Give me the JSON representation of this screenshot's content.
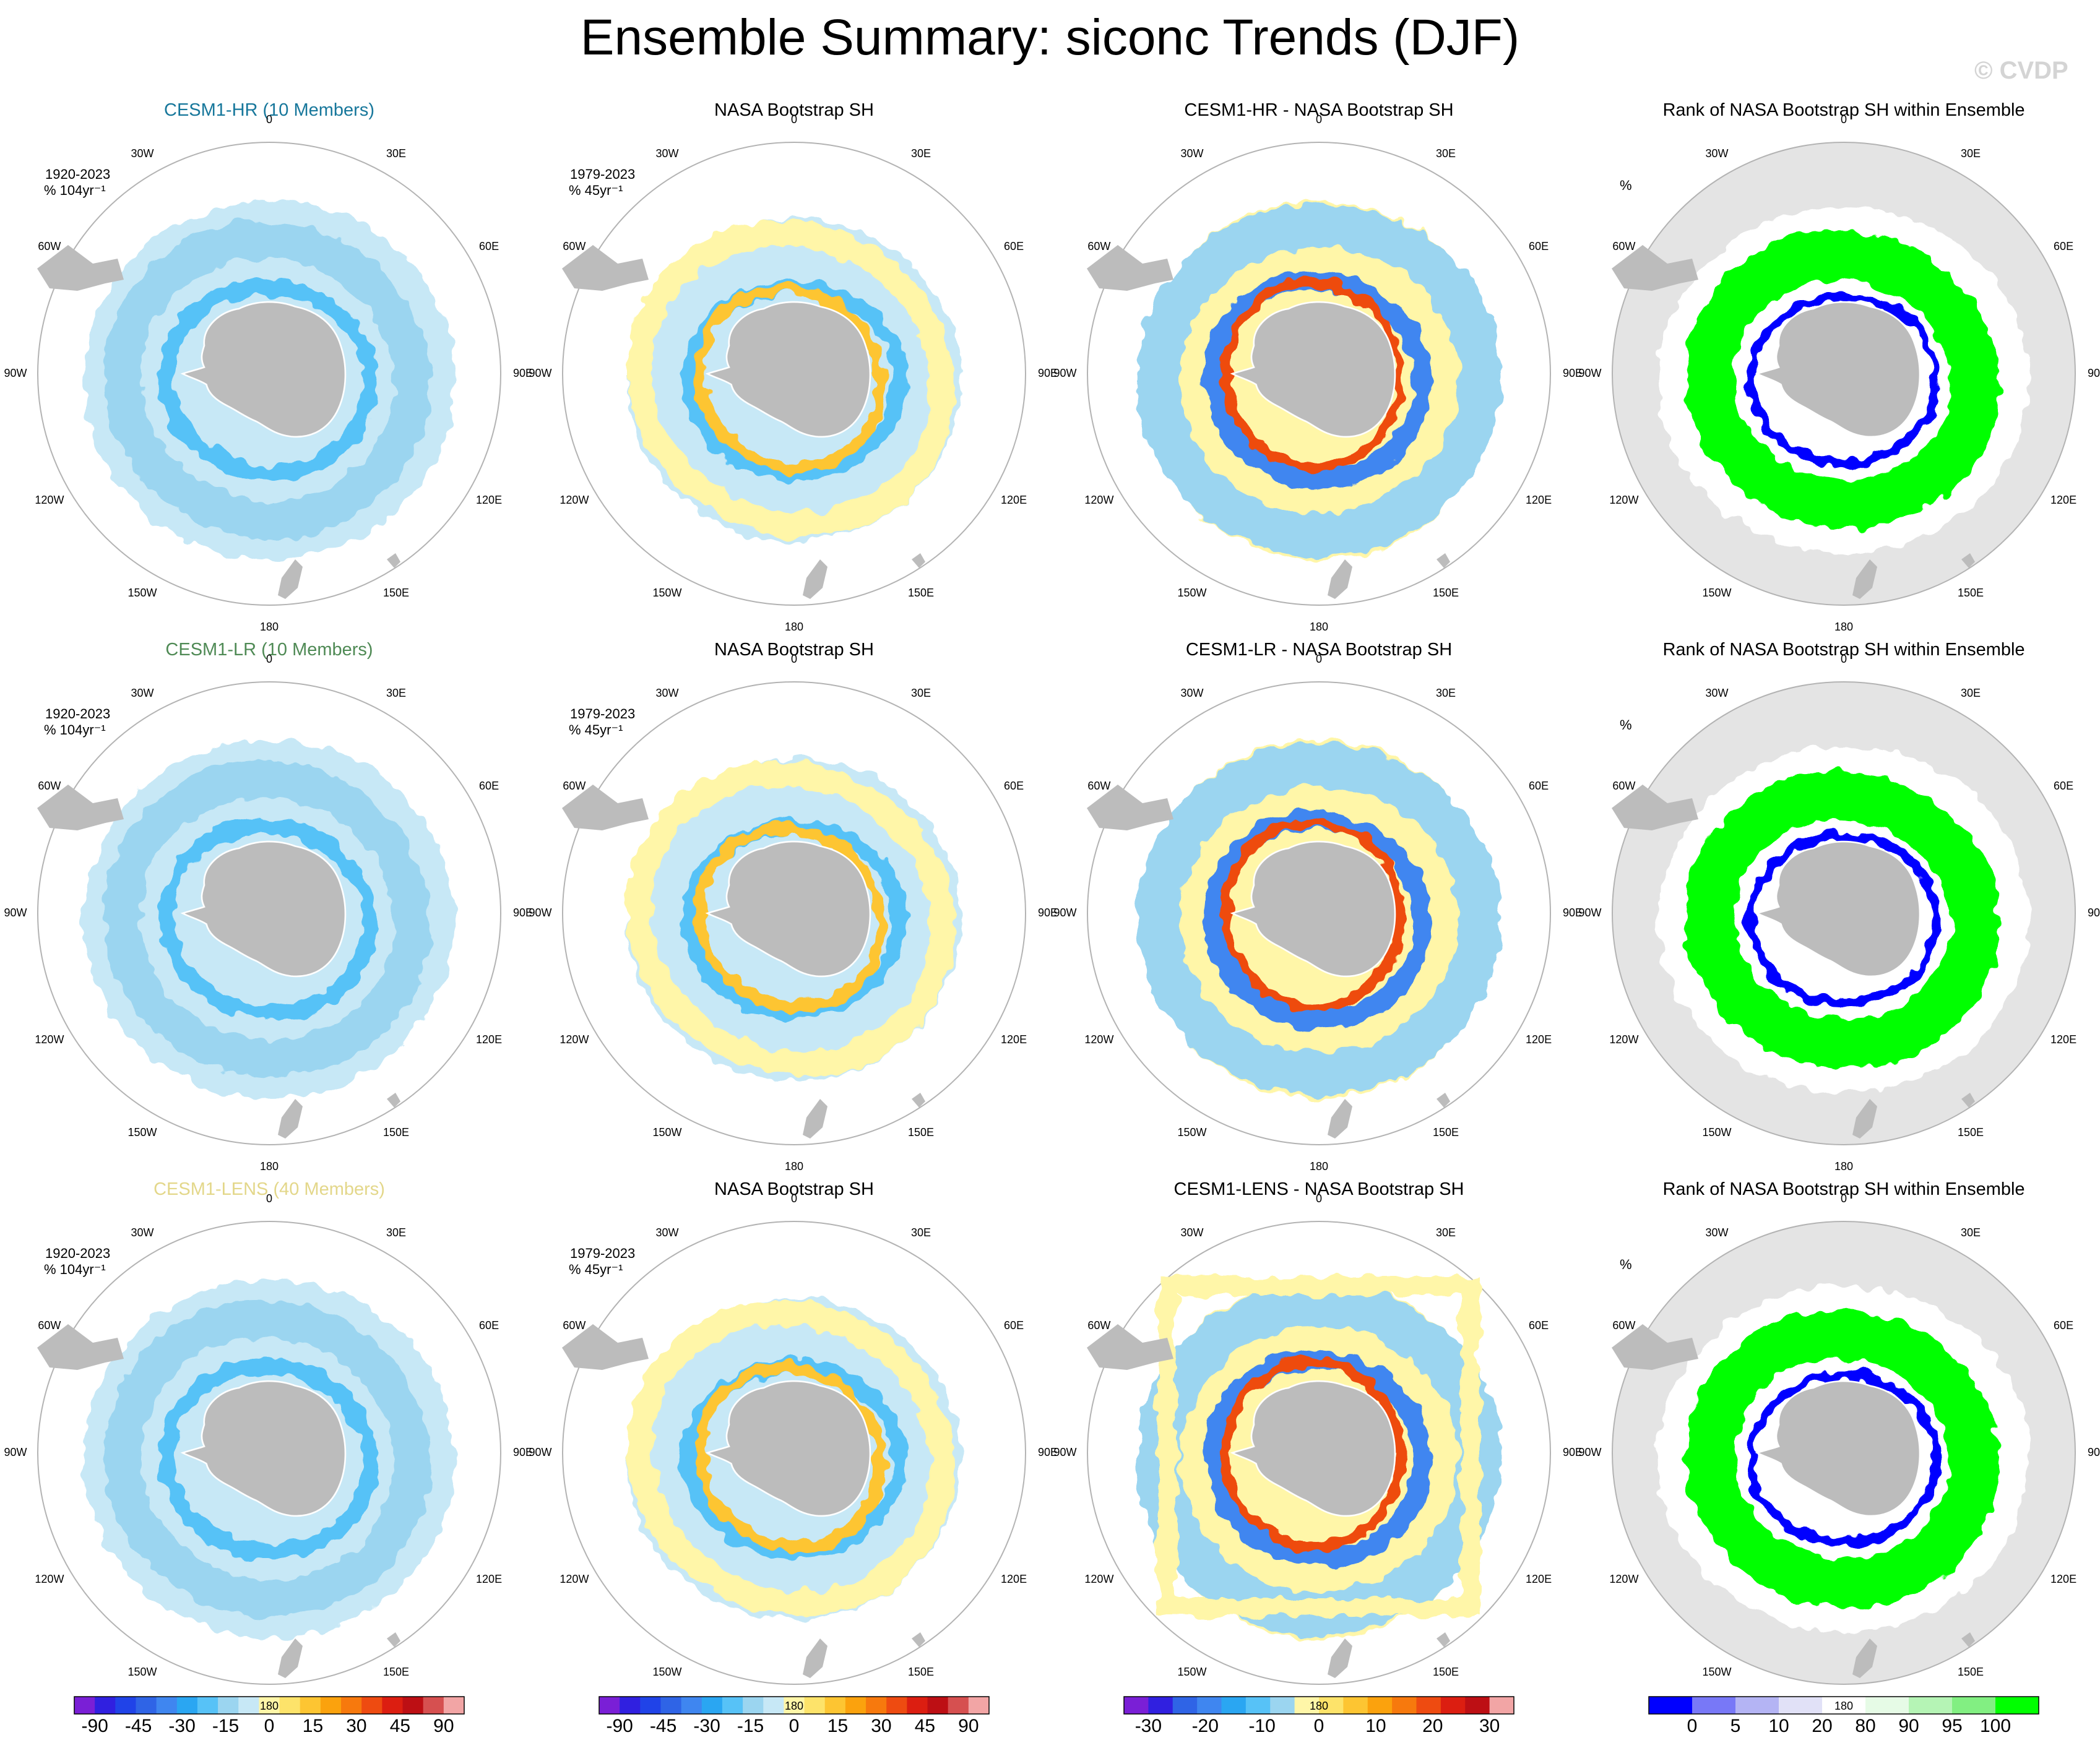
{
  "title": "Ensemble Summary: siconc Trends (DJF)",
  "watermark": "© CVDP",
  "colors": {
    "hr_title": "#17779b",
    "lr_title": "#4f8a55",
    "lens_title": "#e3d78a",
    "land": "#bcbcbc",
    "rank_bg": "#e4e4e4",
    "ring": "#b3b3b3"
  },
  "lon_labels": [
    "0",
    "30E",
    "60E",
    "90E",
    "120E",
    "150E",
    "180",
    "150W",
    "120W",
    "90W",
    "60W",
    "30W"
  ],
  "rows": [
    {
      "model": "CESM1-HR (10 Members)",
      "model_name": "CESM1-HR",
      "title_color": "#17779b",
      "panels": [
        {
          "type": "model",
          "title": "CESM1-HR (10 Members)",
          "period": "1920-2023",
          "units": "% 104yr⁻¹"
        },
        {
          "type": "obs",
          "title": "NASA Bootstrap SH",
          "period": "1979-2023",
          "units": "% 45yr⁻¹"
        },
        {
          "type": "diff",
          "title": "CESM1-HR - NASA Bootstrap SH"
        },
        {
          "type": "rank",
          "title": "Rank of NASA Bootstrap SH within Ensemble",
          "units": "%"
        }
      ]
    },
    {
      "model": "CESM1-LR (10 Members)",
      "model_name": "CESM1-LR",
      "title_color": "#4f8a55",
      "panels": [
        {
          "type": "model",
          "title": "CESM1-LR (10 Members)",
          "period": "1920-2023",
          "units": "% 104yr⁻¹"
        },
        {
          "type": "obs",
          "title": "NASA Bootstrap SH",
          "period": "1979-2023",
          "units": "% 45yr⁻¹"
        },
        {
          "type": "diff",
          "title": "CESM1-LR - NASA Bootstrap SH"
        },
        {
          "type": "rank",
          "title": "Rank of NASA Bootstrap SH within Ensemble",
          "units": "%"
        }
      ]
    },
    {
      "model": "CESM1-LENS (40 Members)",
      "model_name": "CESM1-LENS",
      "title_color": "#e3d78a",
      "panels": [
        {
          "type": "model",
          "title": "CESM1-LENS (40 Members)",
          "period": "1920-2023",
          "units": "% 104yr⁻¹"
        },
        {
          "type": "obs",
          "title": "NASA Bootstrap SH",
          "period": "1979-2023",
          "units": "% 45yr⁻¹"
        },
        {
          "type": "diff",
          "title": "CESM1-LENS - NASA Bootstrap SH"
        },
        {
          "type": "rank",
          "title": "Rank of NASA Bootstrap SH within Ensemble",
          "units": "%"
        }
      ]
    }
  ],
  "colorbars": [
    {
      "name": "trend",
      "colors": [
        "#7a1fd6",
        "#3020e0",
        "#2043e8",
        "#2f64e6",
        "#3f86f0",
        "#2aa6f2",
        "#57c2f7",
        "#9bd5f0",
        "#c7e8f6",
        "#fff6a8",
        "#fde36a",
        "#fdc532",
        "#fba20d",
        "#f7790d",
        "#ee4b11",
        "#dc1e11",
        "#bd0f14",
        "#d65050",
        "#f2a5a5"
      ],
      "labels": [
        "-90",
        "-45",
        "-30",
        "-15",
        "0",
        "15",
        "30",
        "45",
        "90"
      ]
    },
    {
      "name": "trend",
      "colors": [
        "#7a1fd6",
        "#3020e0",
        "#2043e8",
        "#2f64e6",
        "#3f86f0",
        "#2aa6f2",
        "#57c2f7",
        "#9bd5f0",
        "#c7e8f6",
        "#fff6a8",
        "#fde36a",
        "#fdc532",
        "#fba20d",
        "#f7790d",
        "#ee4b11",
        "#dc1e11",
        "#bd0f14",
        "#d65050",
        "#f2a5a5"
      ],
      "labels": [
        "-90",
        "-45",
        "-30",
        "-15",
        "0",
        "15",
        "30",
        "45",
        "90"
      ]
    },
    {
      "name": "diff",
      "colors": [
        "#7a1fd6",
        "#3020e0",
        "#2f64e6",
        "#3f86f0",
        "#2aa6f2",
        "#57c2f7",
        "#9bd5f0",
        "#fff6a8",
        "#fde36a",
        "#fdc532",
        "#fba20d",
        "#f7790d",
        "#ee4b11",
        "#dc1e11",
        "#bd0f14",
        "#f2a5a5"
      ],
      "labels": [
        "-30",
        "-20",
        "-10",
        "0",
        "10",
        "20",
        "30"
      ]
    },
    {
      "name": "rank",
      "colors": [
        "#0000ff",
        "#7878f7",
        "#b4b4f4",
        "#e1e1f7",
        "#ffffff",
        "#e6fbe6",
        "#b5f4b5",
        "#82ef82",
        "#00ff00"
      ],
      "labels": [
        "0",
        "5",
        "10",
        "20",
        "80",
        "90",
        "95",
        "100"
      ]
    }
  ]
}
